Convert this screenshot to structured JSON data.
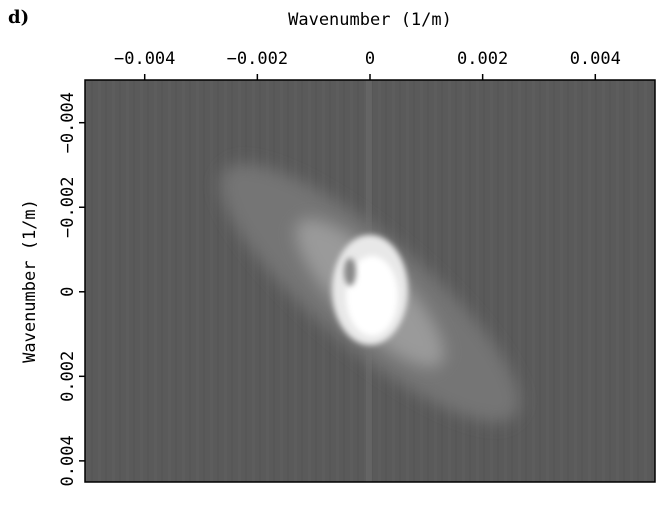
{
  "chart_data": {
    "type": "image",
    "panel_label": "d)",
    "xlabel": "Wavenumber (1/m)",
    "ylabel": "Wavenumber (1/m)",
    "xlim": [
      -0.00506,
      0.00506
    ],
    "xticks": [
      {
        "value": -0.004,
        "label": "−0.004"
      },
      {
        "value": -0.002,
        "label": "−0.002"
      },
      0,
      0.002,
      0.004
    ],
    "ylim": [
      -0.00501,
      0.0045
    ],
    "yticks": [
      {
        "value": -0.004,
        "label": "−0.004"
      },
      {
        "value": -0.002,
        "label": "−0.002"
      },
      0,
      0.002,
      0.004
    ],
    "x_axis_position": "top",
    "y_inverted": true
  }
}
